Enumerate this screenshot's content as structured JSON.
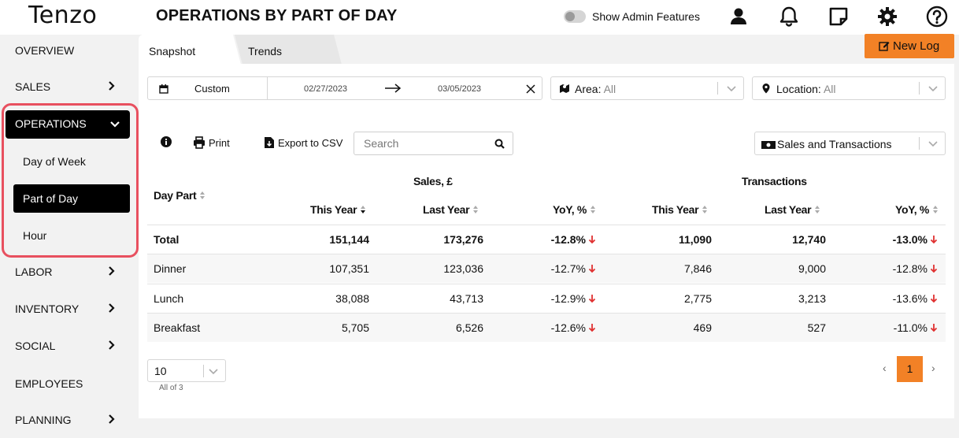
{
  "app": {
    "logo": "Tenzo",
    "page_title": "OPERATIONS BY PART OF DAY",
    "admin_label": "Show Admin Features"
  },
  "sidebar": {
    "items": [
      {
        "label": "OVERVIEW"
      },
      {
        "label": "SALES"
      },
      {
        "label": "OPERATIONS"
      },
      {
        "label": "LABOR"
      },
      {
        "label": "INVENTORY"
      },
      {
        "label": "SOCIAL"
      },
      {
        "label": "EMPLOYEES"
      },
      {
        "label": "PLANNING"
      }
    ],
    "operations_sub": [
      {
        "label": "Day of Week"
      },
      {
        "label": "Part of Day"
      },
      {
        "label": "Hour"
      }
    ]
  },
  "tabs": [
    {
      "label": "Snapshot"
    },
    {
      "label": "Trends"
    }
  ],
  "new_log_label": "New Log",
  "filters": {
    "date_mode": "Custom",
    "start_date": "02/27/2023",
    "end_date": "03/05/2023",
    "area_label": "Area:",
    "area_value": "All",
    "location_label": "Location:",
    "location_value": "All"
  },
  "toolbar": {
    "print": "Print",
    "export": "Export to CSV",
    "search_placeholder": "Search",
    "metric": "Sales and Transactions"
  },
  "table": {
    "day_part_header": "Day Part",
    "sales_group": "Sales, £",
    "transactions_group": "Transactions",
    "columns": [
      "This Year",
      "Last Year",
      "YoY, %",
      "This Year",
      "Last Year",
      "YoY, %"
    ],
    "rows": [
      {
        "part": "Total",
        "s_ty": "151,144",
        "s_ly": "173,276",
        "s_yoy": "-12.8%",
        "t_ty": "11,090",
        "t_ly": "12,740",
        "t_yoy": "-13.0%"
      },
      {
        "part": "Dinner",
        "s_ty": "107,351",
        "s_ly": "123,036",
        "s_yoy": "-12.7%",
        "t_ty": "7,846",
        "t_ly": "9,000",
        "t_yoy": "-12.8%"
      },
      {
        "part": "Lunch",
        "s_ty": "38,088",
        "s_ly": "43,713",
        "s_yoy": "-12.9%",
        "t_ty": "2,775",
        "t_ly": "3,213",
        "t_yoy": "-13.6%"
      },
      {
        "part": "Breakfast",
        "s_ty": "5,705",
        "s_ly": "6,526",
        "s_yoy": "-12.6%",
        "t_ty": "469",
        "t_ly": "527",
        "t_yoy": "-11.0%"
      }
    ]
  },
  "pagination": {
    "page_size": "10",
    "all_of": "All of 3",
    "prev": "‹",
    "current": "1",
    "next": "›"
  },
  "colors": {
    "accent": "#f28126",
    "highlight_ring": "#e8505f",
    "down_arrow": "#e03030"
  },
  "icons": [
    "user-icon",
    "bell-icon",
    "note-icon",
    "gear-icon",
    "help-icon",
    "calendar-icon",
    "map-icon",
    "location-pin-icon",
    "info-icon",
    "print-icon",
    "export-icon",
    "search-icon",
    "money-icon",
    "edit-icon"
  ]
}
